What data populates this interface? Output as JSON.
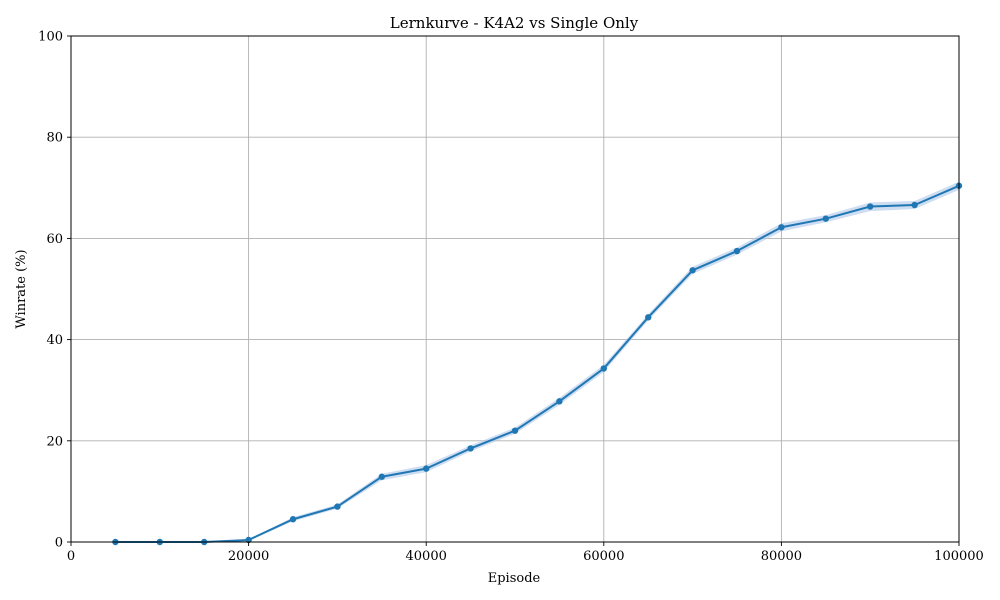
{
  "chart_data": {
    "type": "line",
    "title": "Lernkurve - K4A2 vs Single Only",
    "xlabel": "Episode",
    "ylabel": "Winrate (%)",
    "xlim": [
      0,
      100000
    ],
    "ylim": [
      0,
      100
    ],
    "xticks": [
      "0",
      "20000",
      "40000",
      "60000",
      "80000",
      "100000"
    ],
    "yticks": [
      "0",
      "20",
      "40",
      "60",
      "80",
      "100"
    ],
    "grid": true,
    "series": [
      {
        "color": "#1f77b4",
        "band_color": "#aec7e8",
        "marker": "circle",
        "x": [
          5000,
          10000,
          15000,
          20000,
          25000,
          30000,
          35000,
          40000,
          45000,
          50000,
          55000,
          60000,
          65000,
          70000,
          75000,
          80000,
          85000,
          90000,
          95000,
          100000
        ],
        "y": [
          0.0,
          0.0,
          0.0,
          0.4,
          4.5,
          7.0,
          12.9,
          14.5,
          18.5,
          22.0,
          27.8,
          34.3,
          44.4,
          53.7,
          57.5,
          62.2,
          63.9,
          66.3,
          66.6,
          70.4
        ],
        "y_lower": [
          0.0,
          0.0,
          0.0,
          0.2,
          4.1,
          6.6,
          12.2,
          13.8,
          17.9,
          21.4,
          27.1,
          33.6,
          43.8,
          53.0,
          56.8,
          61.4,
          63.2,
          65.4,
          65.8,
          69.6
        ],
        "y_upper": [
          0.0,
          0.0,
          0.0,
          0.6,
          4.9,
          7.4,
          13.5,
          15.2,
          19.1,
          22.6,
          28.5,
          35.0,
          45.0,
          54.4,
          58.2,
          63.0,
          64.6,
          67.1,
          67.4,
          71.2
        ]
      }
    ]
  }
}
